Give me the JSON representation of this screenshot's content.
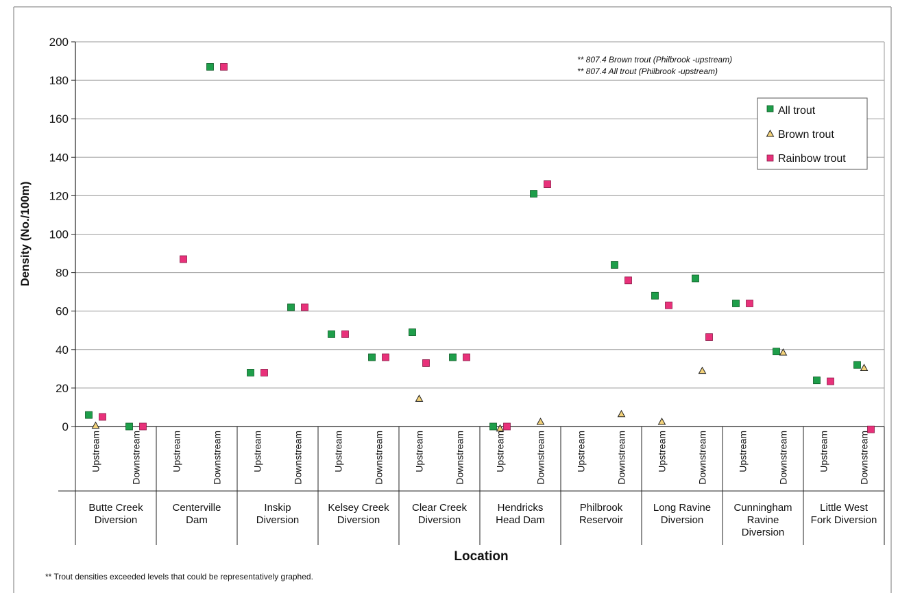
{
  "chart_data": {
    "type": "scatter",
    "title": "",
    "xlabel": "Location",
    "ylabel": "Density (No./100m)",
    "ylim": [
      0,
      200
    ],
    "yticks": [
      0,
      20,
      40,
      60,
      80,
      100,
      120,
      140,
      160,
      180,
      200
    ],
    "grid": true,
    "legend_position": "top-right",
    "positions": [
      "Upstream",
      "Downstream"
    ],
    "locations": [
      {
        "name": "Butte Creek Diversion",
        "lines": [
          "Butte Creek",
          "Diversion"
        ]
      },
      {
        "name": "Centerville Dam",
        "lines": [
          "Centerville",
          "Dam"
        ]
      },
      {
        "name": "Inskip Diversion",
        "lines": [
          "Inskip",
          "Diversion"
        ]
      },
      {
        "name": "Kelsey Creek Diversion",
        "lines": [
          "Kelsey Creek",
          "Diversion"
        ]
      },
      {
        "name": "Clear Creek Diversion",
        "lines": [
          "Clear Creek",
          "Diversion"
        ]
      },
      {
        "name": "Hendricks Head Dam",
        "lines": [
          "Hendricks",
          "Head Dam"
        ]
      },
      {
        "name": "Philbrook Reservoir",
        "lines": [
          "Philbrook",
          "Reservoir"
        ]
      },
      {
        "name": "Long Ravine Diversion",
        "lines": [
          "Long Ravine",
          "Diversion"
        ]
      },
      {
        "name": "Cunningham Ravine Diversion",
        "lines": [
          "Cunningham",
          "Ravine",
          "Diversion"
        ]
      },
      {
        "name": "Little West Fork Diversion",
        "lines": [
          "Little West",
          "Fork Diversion"
        ]
      }
    ],
    "series": [
      {
        "name": "All trout",
        "marker": "square",
        "color": "#1e9e4a",
        "values": [
          6,
          0,
          null,
          187,
          28,
          62,
          48,
          36,
          49,
          36,
          0,
          121,
          null,
          84,
          68,
          77,
          64,
          39,
          24,
          32
        ]
      },
      {
        "name": "Brown trout",
        "marker": "triangle",
        "color": "#f3d27a",
        "values": [
          0.5,
          null,
          null,
          null,
          null,
          null,
          null,
          null,
          14.5,
          null,
          -1,
          2.5,
          null,
          6.5,
          2.5,
          29,
          null,
          38.5,
          null,
          30.5
        ]
      },
      {
        "name": "Rainbow trout",
        "marker": "square",
        "color": "#e8317a",
        "values": [
          5,
          0,
          87,
          187,
          28,
          62,
          48,
          36,
          33,
          36,
          0,
          126,
          null,
          76,
          63,
          46.5,
          64,
          null,
          23.5,
          -1.5
        ]
      }
    ],
    "annotations": [
      "**  807.4 Brown trout (Philbrook -upstream)",
      "**  807.4 All trout (Philbrook -upstream)"
    ],
    "footnote": "**  Trout densities exceeded levels that could be representatively graphed."
  }
}
